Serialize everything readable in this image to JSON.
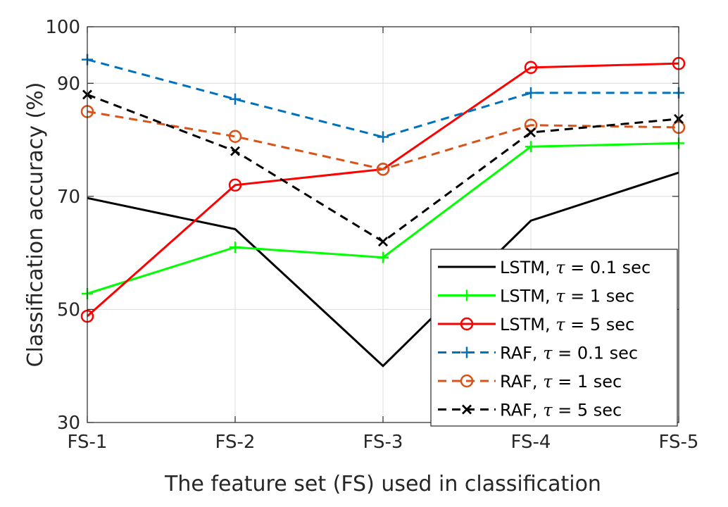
{
  "chart_data": {
    "type": "line",
    "categories": [
      "FS-1",
      "FS-2",
      "FS-3",
      "FS-4",
      "FS-5"
    ],
    "xlabel": "The feature set (FS) used in classification",
    "ylabel": "Classification accuracy (%)",
    "ylim": [
      30,
      100
    ],
    "yticks": [
      30,
      50,
      70,
      90,
      100
    ],
    "grid": true,
    "legend": "bottom-right",
    "series": [
      {
        "name": "LSTM, τ = 0.1 sec",
        "prefix": "LSTM, ",
        "suffix": "= 0.1 sec",
        "color": "#000000",
        "dash": "solid",
        "marker": "none",
        "values": [
          69.7,
          64.2,
          40.0,
          65.7,
          74.2
        ]
      },
      {
        "name": "LSTM, τ = 1 sec",
        "prefix": "LSTM, ",
        "suffix": "= 1 sec",
        "color": "#00ff00",
        "dash": "solid",
        "marker": "plus",
        "values": [
          52.8,
          61.0,
          59.2,
          78.8,
          79.4
        ]
      },
      {
        "name": "LSTM, τ = 5 sec",
        "prefix": "LSTM, ",
        "suffix": "= 5 sec",
        "color": "#ff0000",
        "dash": "solid",
        "marker": "circle",
        "values": [
          48.8,
          72.0,
          74.8,
          92.8,
          93.5
        ]
      },
      {
        "name": "RAF, τ = 0.1 sec",
        "prefix": "RAF, ",
        "suffix": "= 0.1 sec",
        "color": "#0072bd",
        "dash": "dashed",
        "marker": "plus",
        "values": [
          94.2,
          87.2,
          80.5,
          88.3,
          88.3
        ]
      },
      {
        "name": "RAF, τ = 1 sec",
        "prefix": "RAF, ",
        "suffix": "= 1 sec",
        "color": "#d95319",
        "dash": "dashed",
        "marker": "circle",
        "values": [
          85.0,
          80.6,
          74.8,
          82.6,
          82.2
        ]
      },
      {
        "name": "RAF, τ = 5 sec",
        "prefix": "RAF, ",
        "suffix": "= 5 sec",
        "color": "#000000",
        "dash": "dashed",
        "marker": "cross",
        "values": [
          88.0,
          78.0,
          62.0,
          81.3,
          83.7
        ]
      }
    ]
  }
}
